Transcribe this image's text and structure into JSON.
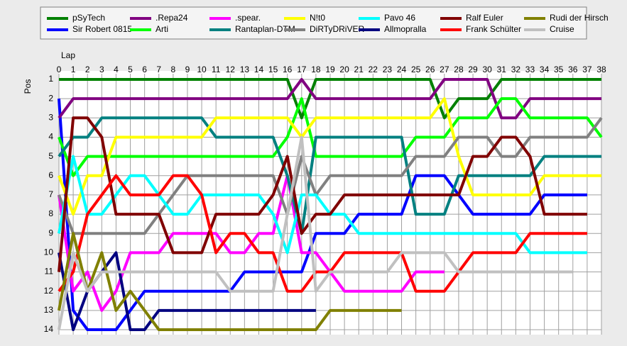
{
  "chart_data": {
    "type": "line",
    "xlabel": "Lap",
    "ylabel": "Pos",
    "x": [
      0,
      1,
      2,
      3,
      4,
      5,
      6,
      7,
      8,
      9,
      10,
      11,
      12,
      13,
      14,
      15,
      16,
      17,
      18,
      19,
      20,
      21,
      22,
      23,
      24,
      25,
      26,
      27,
      28,
      29,
      30,
      31,
      32,
      33,
      34,
      35,
      36,
      37,
      38
    ],
    "xlim": [
      0,
      38
    ],
    "ylim": [
      14,
      1
    ],
    "xticks": [
      0,
      1,
      2,
      3,
      4,
      5,
      6,
      7,
      8,
      9,
      10,
      11,
      12,
      13,
      14,
      15,
      16,
      17,
      18,
      19,
      20,
      21,
      22,
      23,
      24,
      25,
      26,
      27,
      28,
      29,
      30,
      31,
      32,
      33,
      34,
      35,
      36,
      37,
      38
    ],
    "yticks": [
      1,
      2,
      3,
      4,
      5,
      6,
      7,
      8,
      9,
      10,
      11,
      12,
      13,
      14
    ],
    "grid": true,
    "series": [
      {
        "name": "pSyTech",
        "color": "#008000",
        "values": [
          1,
          1,
          1,
          1,
          1,
          1,
          1,
          1,
          1,
          1,
          1,
          1,
          1,
          1,
          1,
          1,
          1,
          3,
          1,
          1,
          1,
          1,
          1,
          1,
          1,
          1,
          1,
          3,
          2,
          2,
          2,
          1,
          1,
          1,
          1,
          1,
          1,
          1,
          1
        ]
      },
      {
        "name": "Sir Robert 0815",
        "color": "#0000ff",
        "values": [
          2,
          13,
          14,
          14,
          14,
          13,
          12,
          12,
          12,
          12,
          12,
          12,
          12,
          11,
          11,
          11,
          11,
          11,
          9,
          9,
          9,
          8,
          8,
          8,
          8,
          6,
          6,
          6,
          7,
          8,
          8,
          8,
          8,
          8,
          7,
          7,
          7,
          7,
          null
        ]
      },
      {
        "name": ".Repa24",
        "color": "#800080",
        "values": [
          3,
          2,
          2,
          2,
          2,
          2,
          2,
          2,
          2,
          2,
          2,
          2,
          2,
          2,
          2,
          2,
          2,
          1,
          2,
          2,
          2,
          2,
          2,
          2,
          2,
          2,
          2,
          1,
          1,
          1,
          1,
          3,
          3,
          2,
          2,
          2,
          2,
          2,
          2
        ]
      },
      {
        "name": "Arti",
        "color": "#00ff00",
        "values": [
          4,
          6,
          5,
          5,
          5,
          5,
          5,
          5,
          5,
          5,
          5,
          5,
          5,
          5,
          5,
          5,
          4,
          2,
          5,
          5,
          5,
          5,
          5,
          5,
          5,
          4,
          4,
          4,
          3,
          3,
          3,
          2,
          2,
          3,
          3,
          3,
          3,
          3,
          4
        ]
      },
      {
        "name": ".spear.",
        "color": "#ff00ff",
        "values": [
          7,
          12,
          11,
          13,
          12,
          10,
          10,
          10,
          9,
          9,
          9,
          9,
          10,
          10,
          9,
          9,
          6,
          10,
          10,
          11,
          12,
          12,
          12,
          12,
          12,
          11,
          11,
          11,
          null,
          null,
          null,
          null,
          null,
          null,
          null,
          null,
          null,
          null,
          null
        ]
      },
      {
        "name": "Rantaplan-DTM",
        "color": "#008080",
        "values": [
          5,
          4,
          4,
          3,
          3,
          3,
          3,
          3,
          3,
          3,
          3,
          4,
          4,
          4,
          4,
          4,
          6,
          9,
          4,
          4,
          4,
          4,
          4,
          4,
          4,
          8,
          8,
          8,
          6,
          6,
          6,
          6,
          6,
          6,
          5,
          5,
          5,
          5,
          5
        ]
      },
      {
        "name": "N!t0",
        "color": "#ffff00",
        "values": [
          6,
          8,
          6,
          6,
          4,
          4,
          4,
          4,
          4,
          4,
          4,
          3,
          3,
          3,
          3,
          3,
          3,
          4,
          3,
          3,
          3,
          3,
          3,
          3,
          3,
          3,
          3,
          2,
          5,
          7,
          7,
          7,
          7,
          7,
          6,
          6,
          6,
          6,
          6
        ]
      },
      {
        "name": "DiRTyDRiVER",
        "color": "#808080",
        "values": [
          7,
          9,
          9,
          9,
          9,
          9,
          9,
          8,
          7,
          6,
          6,
          6,
          6,
          6,
          6,
          6,
          8,
          5,
          7,
          6,
          6,
          6,
          6,
          6,
          6,
          5,
          5,
          5,
          4,
          4,
          4,
          5,
          5,
          4,
          4,
          4,
          4,
          4,
          3
        ]
      },
      {
        "name": "Pavo 46",
        "color": "#00ffff",
        "values": [
          9,
          5,
          8,
          8,
          7,
          6,
          6,
          7,
          8,
          8,
          7,
          7,
          7,
          7,
          7,
          8,
          10,
          7,
          7,
          8,
          8,
          9,
          9,
          9,
          9,
          9,
          9,
          9,
          9,
          9,
          9,
          9,
          9,
          10,
          10,
          10,
          10,
          10,
          null
        ]
      },
      {
        "name": "Allmopralla",
        "color": "#000080",
        "values": [
          10,
          14,
          12,
          11,
          10,
          14,
          14,
          13,
          13,
          13,
          13,
          13,
          13,
          13,
          13,
          13,
          13,
          13,
          13,
          null,
          null,
          null,
          null,
          null,
          null,
          null,
          null,
          null,
          null,
          null,
          null,
          null,
          null,
          null,
          null,
          null,
          null,
          null,
          null
        ]
      },
      {
        "name": "Ralf Euler",
        "color": "#800000",
        "values": [
          11,
          3,
          3,
          4,
          8,
          8,
          8,
          8,
          10,
          10,
          10,
          8,
          8,
          8,
          8,
          7,
          5,
          9,
          8,
          8,
          7,
          7,
          7,
          7,
          7,
          7,
          7,
          7,
          7,
          5,
          5,
          4,
          4,
          5,
          8,
          8,
          8,
          8,
          null
        ]
      },
      {
        "name": "Frank Schülter",
        "color": "#ff0000",
        "values": [
          12,
          11,
          8,
          7,
          6,
          7,
          7,
          7,
          6,
          6,
          7,
          10,
          9,
          9,
          10,
          10,
          12,
          12,
          11,
          11,
          10,
          10,
          10,
          10,
          10,
          12,
          12,
          12,
          11,
          10,
          10,
          10,
          10,
          9,
          9,
          9,
          9,
          9,
          null
        ]
      },
      {
        "name": "Rudi der Hirsch",
        "color": "#808000",
        "values": [
          13,
          9,
          12,
          10,
          13,
          12,
          13,
          14,
          14,
          14,
          14,
          14,
          14,
          14,
          14,
          14,
          14,
          14,
          14,
          13,
          13,
          13,
          13,
          13,
          13,
          null,
          null,
          null,
          null,
          null,
          null,
          null,
          null,
          null,
          null,
          null,
          null,
          null,
          null
        ]
      },
      {
        "name": "Cruise",
        "color": "#c0c0c0",
        "values": [
          14,
          10,
          12,
          11,
          11,
          11,
          11,
          11,
          11,
          11,
          11,
          11,
          12,
          12,
          12,
          12,
          8,
          4,
          12,
          11,
          11,
          11,
          11,
          11,
          10,
          10,
          10,
          10,
          11,
          11,
          11,
          11,
          11,
          11,
          11,
          11,
          11,
          null,
          null
        ]
      }
    ]
  }
}
